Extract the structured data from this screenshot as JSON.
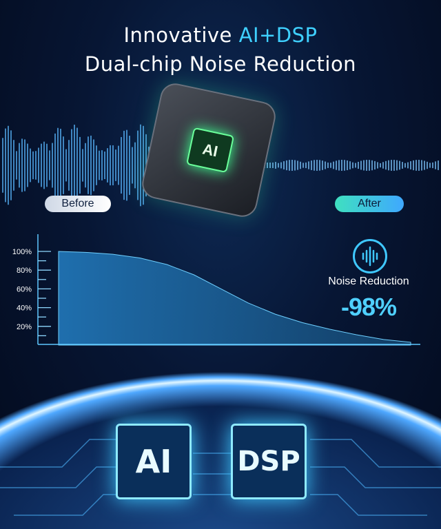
{
  "title": {
    "line1_prefix": "Innovative ",
    "line1_accent": "AI+DSP",
    "line2": "Dual-chip Noise Reduction"
  },
  "labels": {
    "before": "Before",
    "after": "After"
  },
  "device": {
    "chip_label": "AI"
  },
  "chart_data": {
    "type": "area",
    "y_ticks": [
      "100%",
      "80%",
      "60%",
      "40%",
      "20%"
    ],
    "ylim": [
      0,
      100
    ],
    "values": [
      100,
      99,
      97,
      93,
      86,
      75,
      60,
      45,
      33,
      24,
      17,
      11,
      6,
      3
    ]
  },
  "noise_reduction": {
    "icon": "sound-wave-icon",
    "label": "Noise Reduction",
    "value": "-98%"
  },
  "chips": {
    "ai": "AI",
    "dsp": "DSP"
  },
  "colors": {
    "accent": "#3fd0ff",
    "background": "#050d24"
  }
}
